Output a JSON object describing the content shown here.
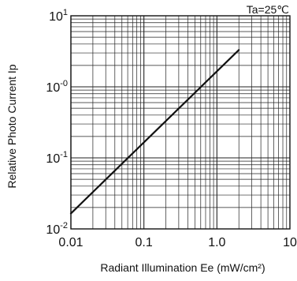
{
  "chart_data": {
    "type": "line",
    "x_scale": "log",
    "y_scale": "log",
    "xlim": [
      0.01,
      10
    ],
    "ylim": [
      0.01,
      10
    ],
    "grid": true,
    "xlabel": "Radiant Illumination  Ee (mW/cm²)",
    "ylabel": "Relative Photo Current  Ip",
    "annotation": "Ta=25℃",
    "x_tick_labels": [
      "0.01",
      "0.1",
      "1.0",
      "10"
    ],
    "y_tick_labels": [
      {
        "base": "10",
        "exp": "-2"
      },
      {
        "base": "10",
        "exp": "-1"
      },
      {
        "base": "10",
        "exp": "-0"
      },
      {
        "base": "10",
        "exp": "1"
      }
    ],
    "series": [
      {
        "x": [
          0.01,
          2.0
        ],
        "y": [
          0.0165,
          3.3
        ]
      }
    ],
    "line_color": "#111111"
  }
}
